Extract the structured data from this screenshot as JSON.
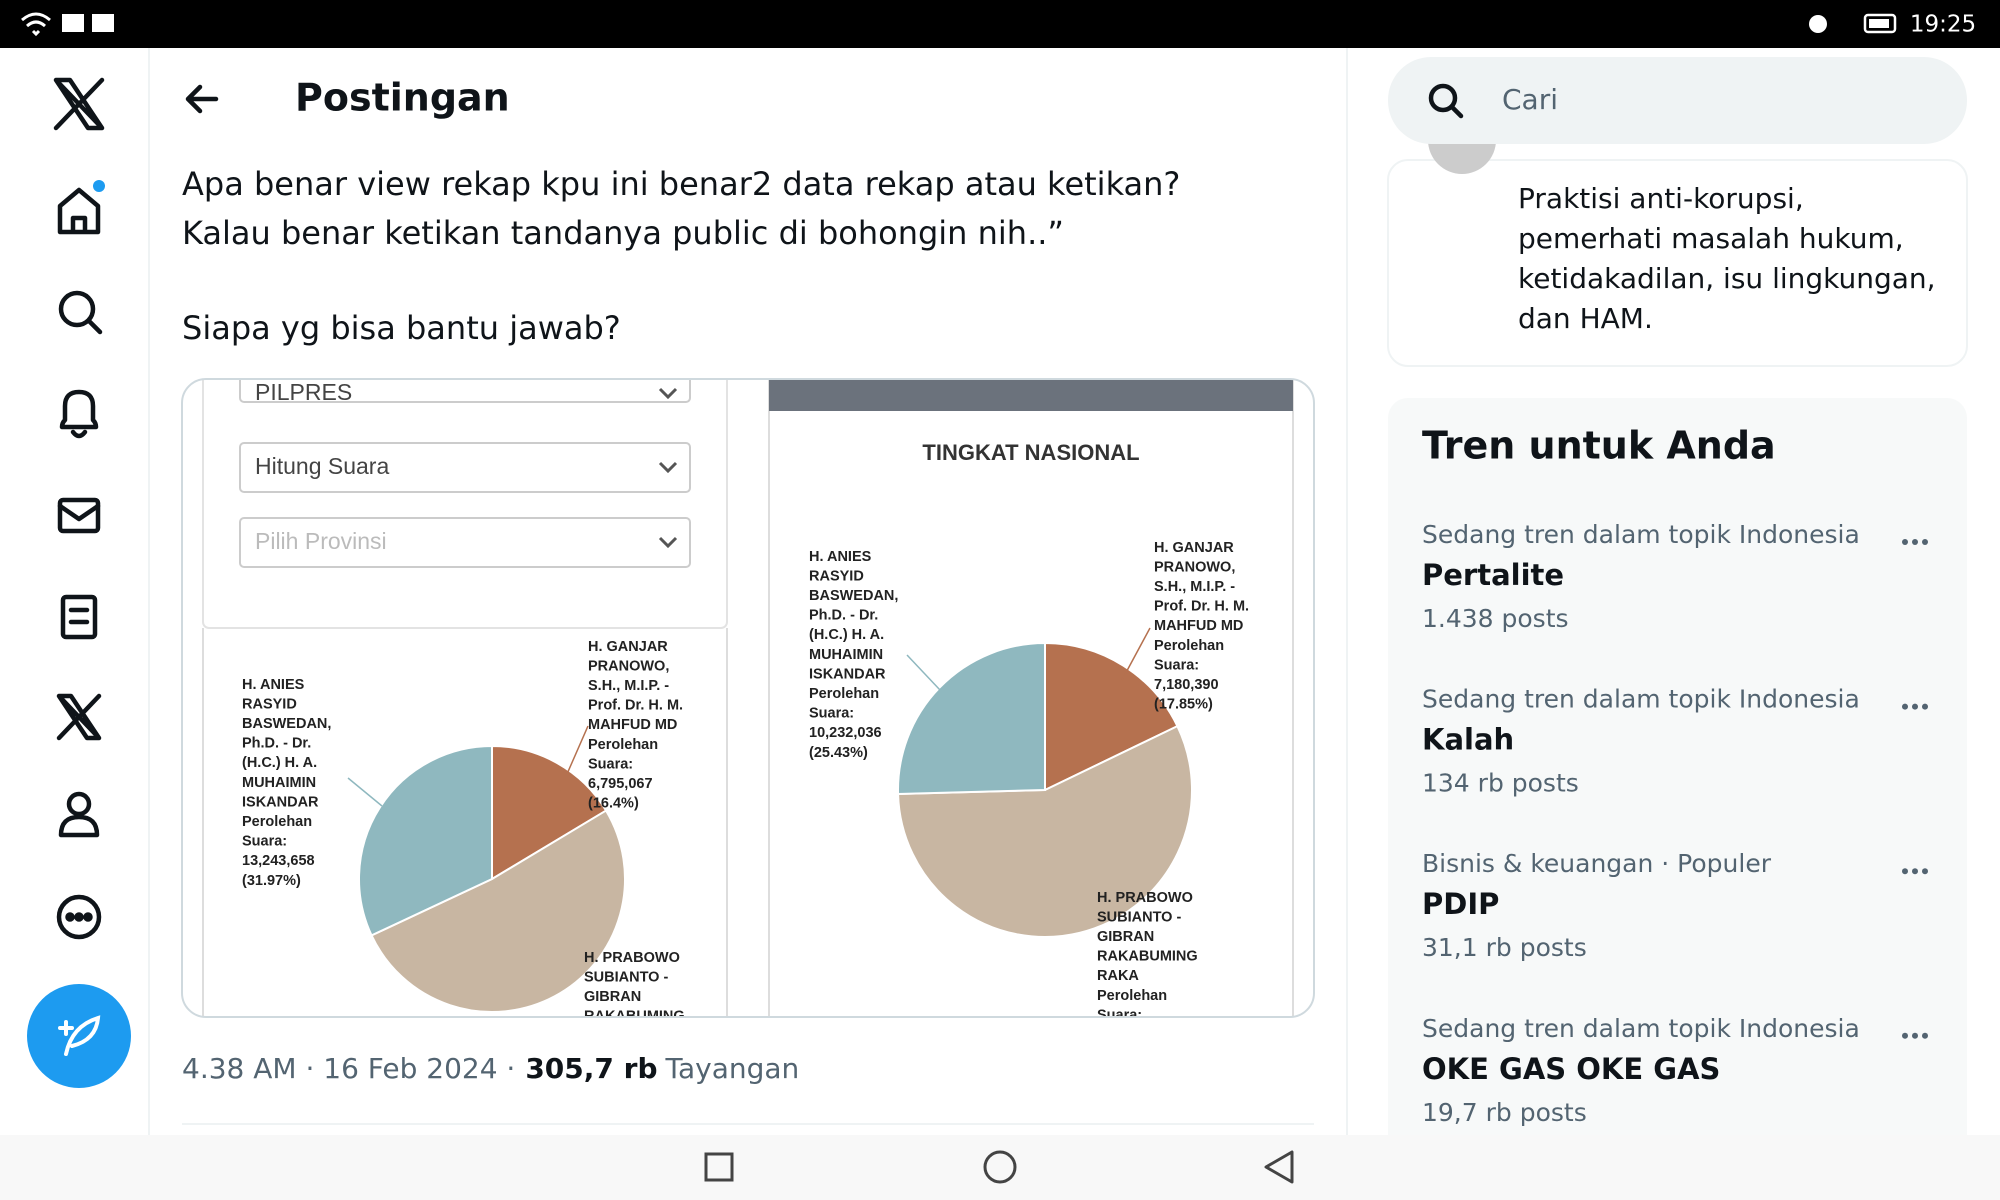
{
  "status_bar": {
    "time": "19:25"
  },
  "header": {
    "title": "Postingan"
  },
  "search": {
    "placeholder": "Cari"
  },
  "tweet": {
    "lines": [
      "Apa benar view rekap kpu ini benar2 data rekap atau ketikan?",
      "Kalau benar ketikan tandanya public di bohongin nih..”",
      "Siapa yg bisa bantu jawab?"
    ],
    "image": {
      "dropdowns": [
        "PILPRES",
        "Hitung Suara",
        "Pilih Provinsi"
      ],
      "right_title": "TINGKAT NASIONAL",
      "pies": [
        {
          "slices": [
            {
              "label": [
                "H. GANJAR",
                "PRANOWO,",
                "S.H., M.I.P. -",
                "Prof. Dr. H. M.",
                "MAHFUD MD",
                "Perolehan",
                "Suara:",
                "6,795,067",
                "(16.4%)"
              ],
              "value": 16.4
            },
            {
              "label": [
                "H. PRABOWO",
                "SUBIANTO -",
                "GIBRAN",
                "RAKABUMING"
              ],
              "value": 51.63
            },
            {
              "label": [
                "H. ANIES",
                "RASYID",
                "BASWEDAN,",
                "Ph.D. - Dr.",
                "(H.C.) H. A.",
                "MUHAIMIN",
                "ISKANDAR",
                "Perolehan",
                "Suara:",
                "13,243,658",
                "(31.97%)"
              ],
              "value": 31.97
            }
          ]
        },
        {
          "slices": [
            {
              "label": [
                "H. GANJAR",
                "PRANOWO,",
                "S.H., M.I.P. -",
                "Prof. Dr. H. M.",
                "MAHFUD MD",
                "Perolehan",
                "Suara:",
                "7,180,390",
                "(17.85%)"
              ],
              "value": 17.85
            },
            {
              "label": [
                "H. PRABOWO",
                "SUBIANTO -",
                "GIBRAN",
                "RAKABUMING",
                "RAKA",
                "Perolehan",
                "Suara:"
              ],
              "value": 56.72
            },
            {
              "label": [
                "H. ANIES",
                "RASYID",
                "BASWEDAN,",
                "Ph.D. - Dr.",
                "(H.C.) H. A.",
                "MUHAIMIN",
                "ISKANDAR",
                "Perolehan",
                "Suara:",
                "10,232,036",
                "(25.43%)"
              ],
              "value": 25.43
            }
          ]
        }
      ]
    },
    "meta": {
      "time": "4.38 AM · 16 Feb 2024 ·",
      "views": "305,7 rb",
      "views_label": "Tayangan"
    }
  },
  "profile": {
    "bio": [
      "Praktisi anti-korupsi,",
      "pemerhati masalah hukum,",
      "ketidakadilan, isu lingkungan,",
      "dan HAM."
    ]
  },
  "trends": {
    "title": "Tren untuk Anda",
    "items": [
      {
        "context": "Sedang tren dalam topik Indonesia",
        "name": "Pertalite",
        "count": "1.438 posts"
      },
      {
        "context": "Sedang tren dalam topik Indonesia",
        "name": "Kalah",
        "count": "134 rb posts"
      },
      {
        "context": "Bisnis & keuangan · Populer",
        "name": "PDIP",
        "count": "31,1 rb posts"
      },
      {
        "context": "Sedang tren dalam topik Indonesia",
        "name": "OKE GAS OKE GAS",
        "count": "19,7 rb posts"
      }
    ]
  }
}
